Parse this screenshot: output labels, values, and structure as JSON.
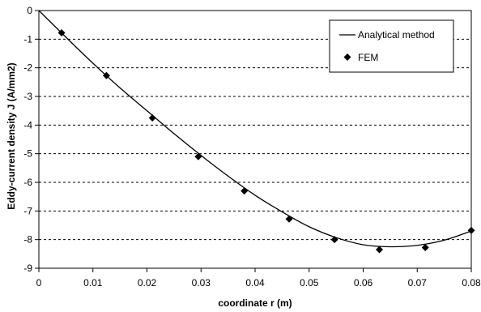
{
  "chart_data": {
    "type": "line",
    "xlabel": "coordinate  r  (m)",
    "ylabel": "Eddy-current density  J  (A/mm2)",
    "xlim": [
      0,
      0.08
    ],
    "ylim": [
      -9,
      0
    ],
    "x_ticks": [
      0,
      0.01,
      0.02,
      0.03,
      0.04,
      0.05,
      0.06,
      0.07,
      0.08
    ],
    "x_tick_labels": [
      "0",
      "0.01",
      "0.02",
      "0.03",
      "0.04",
      "0.05",
      "0.06",
      "0.07",
      "0.08"
    ],
    "y_ticks": [
      0,
      -1,
      -2,
      -3,
      -4,
      -5,
      -6,
      -7,
      -8,
      -9
    ],
    "y_tick_labels": [
      "0",
      "-1",
      "-2",
      "-3",
      "-4",
      "-5",
      "-6",
      "-7",
      "-8",
      "-9"
    ],
    "grid": {
      "x": false,
      "y": true,
      "style": "dashed"
    },
    "legend": {
      "position": "top-right"
    },
    "series": [
      {
        "name": "Analytical method",
        "style": "line",
        "color": "#000000",
        "x": [
          0,
          0.005,
          0.01,
          0.015,
          0.02,
          0.025,
          0.03,
          0.035,
          0.04,
          0.045,
          0.05,
          0.055,
          0.06,
          0.065,
          0.07,
          0.075,
          0.08
        ],
        "y": [
          0,
          -0.93,
          -1.84,
          -2.7,
          -3.5,
          -4.3,
          -5.06,
          -5.78,
          -6.45,
          -7.03,
          -7.55,
          -7.93,
          -8.18,
          -8.25,
          -8.2,
          -8.02,
          -7.7
        ]
      },
      {
        "name": "FEM",
        "style": "marker",
        "marker": "diamond",
        "color": "#000000",
        "x": [
          0.0042,
          0.0125,
          0.021,
          0.0295,
          0.038,
          0.0463,
          0.0547,
          0.063,
          0.0715,
          0.08
        ],
        "y": [
          -0.78,
          -2.27,
          -3.75,
          -5.1,
          -6.3,
          -7.28,
          -8.0,
          -8.35,
          -8.28,
          -7.68
        ]
      }
    ]
  }
}
